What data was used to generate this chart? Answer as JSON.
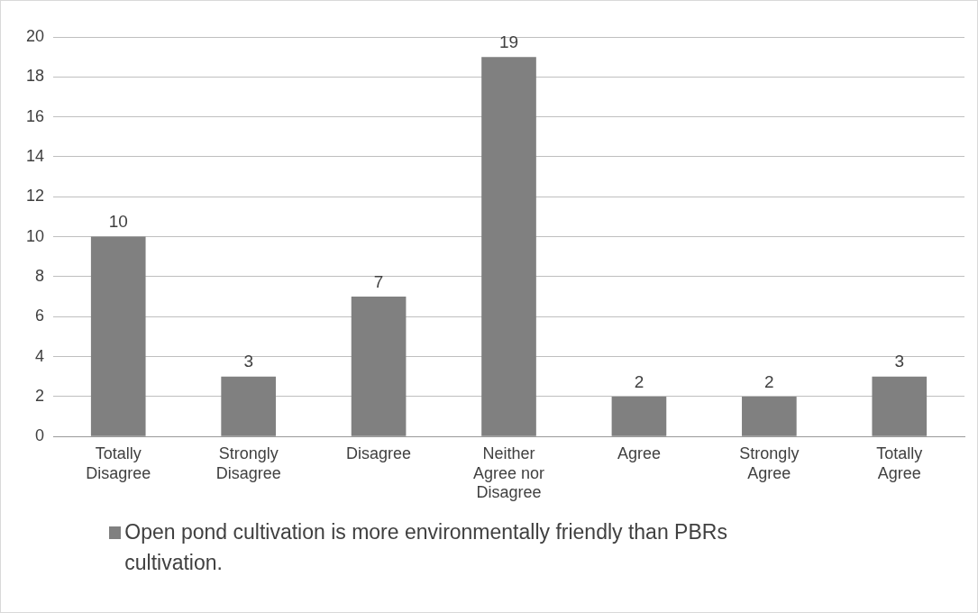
{
  "chart_data": {
    "type": "bar",
    "categories": [
      "Totally Disagree",
      "Strongly Disagree",
      "Disagree",
      "Neither Agree nor Disagree",
      "Agree",
      "Strongly Agree",
      "Totally Agree"
    ],
    "series": [
      {
        "name": "Open pond cultivation is more environmentally friendly than PBRs cultivation.",
        "color": "#808080",
        "values": [
          10,
          3,
          7,
          19,
          2,
          2,
          3
        ]
      }
    ],
    "ylim": [
      0,
      20
    ],
    "yticks": [
      0,
      2,
      4,
      6,
      8,
      10,
      12,
      14,
      16,
      18,
      20
    ],
    "grid": "y",
    "legend": "bottom",
    "data_labels": true
  }
}
